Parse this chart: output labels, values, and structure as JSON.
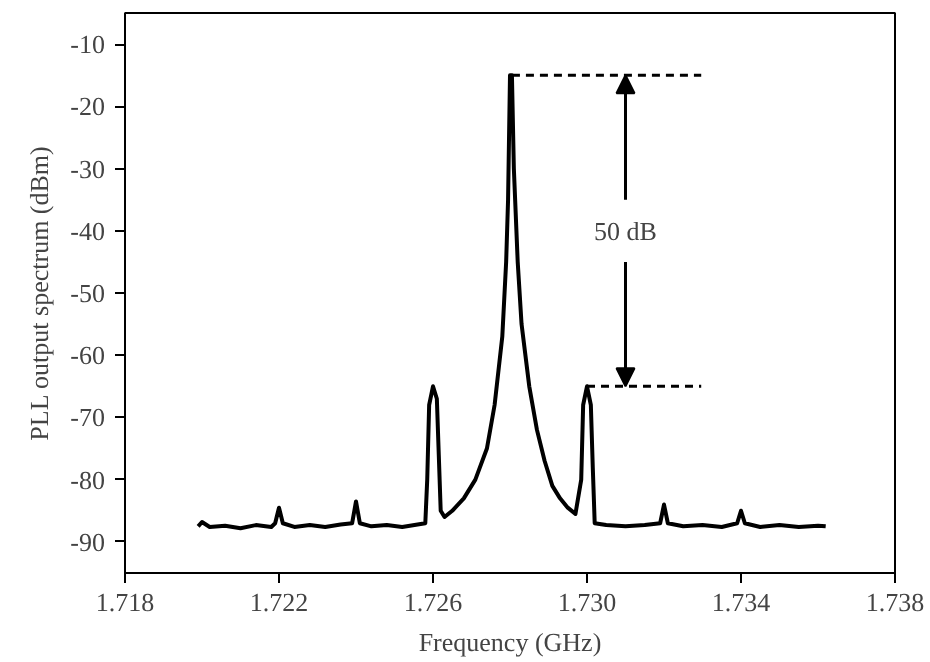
{
  "chart_data": {
    "type": "line",
    "xlabel": "Frequency (GHz)",
    "ylabel": "PLL output spectrum (dBm)",
    "x": [
      1.7199,
      1.72,
      1.7202,
      1.7206,
      1.721,
      1.7214,
      1.7218,
      1.7219,
      1.722,
      1.7221,
      1.7224,
      1.7228,
      1.7232,
      1.7236,
      1.7239,
      1.724,
      1.7241,
      1.7244,
      1.7248,
      1.7252,
      1.7256,
      1.7258,
      1.72585,
      1.7259,
      1.726,
      1.7261,
      1.72615,
      1.7262,
      1.7263,
      1.7265,
      1.7268,
      1.7271,
      1.7274,
      1.7276,
      1.7278,
      1.7279,
      1.72795,
      1.728,
      1.72805,
      1.7281,
      1.7282,
      1.7283,
      1.7285,
      1.7287,
      1.7289,
      1.7291,
      1.7293,
      1.7295,
      1.7297,
      1.72985,
      1.7299,
      1.73,
      1.7301,
      1.73015,
      1.7302,
      1.7305,
      1.731,
      1.7315,
      1.7319,
      1.732,
      1.7321,
      1.7325,
      1.733,
      1.7335,
      1.7339,
      1.734,
      1.7341,
      1.7345,
      1.735,
      1.7355,
      1.736,
      1.7362
    ],
    "series": [
      {
        "color": "#000000",
        "values": [
          -87.5,
          -86.8,
          -87.6,
          -87.4,
          -87.8,
          -87.3,
          -87.6,
          -87,
          -84.5,
          -87,
          -87.6,
          -87.3,
          -87.6,
          -87.2,
          -87,
          -83.5,
          -87,
          -87.5,
          -87.3,
          -87.6,
          -87.2,
          -87,
          -80,
          -68,
          -65,
          -67,
          -76,
          -85,
          -86,
          -85,
          -83,
          -80,
          -75,
          -68,
          -57,
          -45,
          -35,
          -15,
          -15,
          -30,
          -45,
          -55,
          -65,
          -72,
          -77,
          -81,
          -83,
          -84.5,
          -85.5,
          -80,
          -68,
          -65,
          -68,
          -78,
          -87,
          -87.3,
          -87.5,
          -87.3,
          -87,
          -84,
          -87,
          -87.5,
          -87.3,
          -87.6,
          -87,
          -85,
          -87,
          -87.6,
          -87.3,
          -87.6,
          -87.4,
          -87.5
        ]
      }
    ],
    "xlim": [
      1.718,
      1.738
    ],
    "xticks": [
      1.718,
      1.722,
      1.726,
      {
        "value": 1.73,
        "label": "1.730"
      },
      1.734,
      1.738
    ],
    "ylim": [
      -95,
      -5
    ],
    "yticks": [
      -90,
      -80,
      -70,
      -60,
      -50,
      -40,
      -30,
      -20,
      -10
    ],
    "ref_lines": [
      {
        "axis": "y",
        "value": -15,
        "line_style": "dashed"
      },
      {
        "axis": "y",
        "value": -65,
        "line_style": "dashed"
      }
    ],
    "annotations": [
      {
        "text": "50 dB",
        "x": 1.731,
        "y": -40
      }
    ],
    "grid": false,
    "marker": "none",
    "line_style": "solid"
  }
}
